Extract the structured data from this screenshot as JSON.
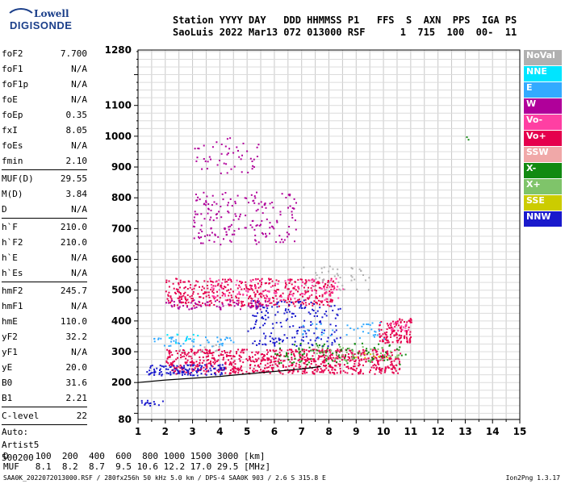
{
  "logo": {
    "brand": "Lowell",
    "product": "DIGISONDE"
  },
  "header": {
    "line1": "Station YYYY DAY   DDD HHMMSS P1   FFS  S  AXN  PPS  IGA PS",
    "line2": "SaoLuis 2022 Mar13 072 013000 RSF      1  715  100  00-  11"
  },
  "params": [
    {
      "label": "foF2",
      "value": "7.700"
    },
    {
      "label": "foF1",
      "value": "N/A"
    },
    {
      "label": "foF1p",
      "value": "N/A"
    },
    {
      "label": "foE",
      "value": "N/A"
    },
    {
      "label": "foEp",
      "value": "0.35"
    },
    {
      "label": "fxI",
      "value": "8.05"
    },
    {
      "label": "foEs",
      "value": "N/A"
    },
    {
      "label": "fmin",
      "value": "2.10"
    },
    {
      "sep": true
    },
    {
      "label": "MUF(D)",
      "value": "29.55"
    },
    {
      "label": "M(D)",
      "value": "3.84"
    },
    {
      "label": "D",
      "value": "N/A"
    },
    {
      "sep": true
    },
    {
      "label": "h`F",
      "value": "210.0"
    },
    {
      "label": "h`F2",
      "value": "210.0"
    },
    {
      "label": "h`E",
      "value": "N/A"
    },
    {
      "label": "h`Es",
      "value": "N/A"
    },
    {
      "sep": true
    },
    {
      "label": "hmF2",
      "value": "245.7"
    },
    {
      "label": "hmF1",
      "value": "N/A"
    },
    {
      "label": "hmE",
      "value": "110.0"
    },
    {
      "label": "yF2",
      "value": "32.2"
    },
    {
      "label": "yF1",
      "value": "N/A"
    },
    {
      "label": "yE",
      "value": "20.0"
    },
    {
      "label": "B0",
      "value": "31.6"
    },
    {
      "label": "B1",
      "value": "2.21"
    },
    {
      "sep": true
    },
    {
      "label": "C-level",
      "value": "22"
    },
    {
      "sep": true
    }
  ],
  "autoscale": {
    "line1": "Auto:",
    "line2": "Artist5",
    "line3": "500200"
  },
  "legend": [
    {
      "label": "NoVal",
      "color": "#b0b0b0"
    },
    {
      "label": "NNE",
      "color": "#00e5ff"
    },
    {
      "label": "E",
      "color": "#33aaff"
    },
    {
      "label": "W",
      "color": "#b0009a"
    },
    {
      "label": "Vo-",
      "color": "#ff3fa3"
    },
    {
      "label": "Vo+",
      "color": "#e5004d"
    },
    {
      "label": "SSW",
      "color": "#f0a8a8"
    },
    {
      "label": "X-",
      "color": "#118a11"
    },
    {
      "label": "X+",
      "color": "#7fc46a"
    },
    {
      "label": "SSE",
      "color": "#cccc00"
    },
    {
      "label": "NNW",
      "color": "#1a1acc"
    }
  ],
  "footer": {
    "line1": "D     100  200  400  600  800 1000 1500 3000 [km]",
    "line2": "MUF   8.1  8.2  8.7  9.5 10.6 12.2 17.0 29.5 [MHz]",
    "file": "SAA0K_2022072013000.RSF / 280fx256h 50 kHz 5.0 km / DPS-4 SAA0K 903 / 2.6 S 315.8 E",
    "version": "Ion2Png 1.3.17"
  },
  "chart_data": {
    "type": "scatter",
    "title": "",
    "xlabel": "",
    "ylabel": "",
    "xlim": [
      1,
      15
    ],
    "ylim": [
      80,
      1280
    ],
    "x_ticks": [
      1,
      2,
      3,
      4,
      5,
      6,
      7,
      8,
      9,
      10,
      11,
      12,
      13,
      14,
      15
    ],
    "y_ticks": [
      80,
      200,
      300,
      400,
      500,
      600,
      700,
      800,
      900,
      1000,
      1100,
      1280
    ],
    "grid": true,
    "trace_line": {
      "x": [
        1.0,
        2.0,
        3.0,
        4.0,
        5.0,
        6.0,
        7.0,
        7.7
      ],
      "y": [
        200,
        208,
        214,
        220,
        228,
        236,
        244,
        252
      ]
    },
    "series": [
      {
        "name": "Vo+",
        "color": "#e5004d",
        "bands": [
          {
            "x": [
              2.0,
              10.6
            ],
            "y": [
              230,
              310
            ],
            "density": 0.85
          },
          {
            "x": [
              2.0,
              8.2
            ],
            "y": [
              450,
              540
            ],
            "density": 0.55
          },
          {
            "x": [
              9.8,
              11.0
            ],
            "y": [
              330,
              410
            ],
            "density": 0.9
          }
        ]
      },
      {
        "name": "NNW",
        "color": "#1a1acc",
        "bands": [
          {
            "x": [
              1.1,
              1.9
            ],
            "y": [
              125,
              145
            ],
            "density": 0.7
          },
          {
            "x": [
              1.3,
              4.2
            ],
            "y": [
              225,
              260
            ],
            "density": 0.8
          },
          {
            "x": [
              5.0,
              8.4
            ],
            "y": [
              320,
              470
            ],
            "density": 0.25
          }
        ]
      },
      {
        "name": "W",
        "color": "#b0009a",
        "bands": [
          {
            "x": [
              2.0,
              5.8
            ],
            "y": [
              440,
              470
            ],
            "density": 0.45
          },
          {
            "x": [
              3.0,
              5.4
            ],
            "y": [
              880,
              1000
            ],
            "density": 0.12
          },
          {
            "x": [
              3.0,
              6.8
            ],
            "y": [
              650,
              820
            ],
            "density": 0.2
          }
        ]
      },
      {
        "name": "E",
        "color": "#33aaff",
        "bands": [
          {
            "x": [
              1.5,
              4.5
            ],
            "y": [
              320,
              350
            ],
            "density": 0.35
          },
          {
            "x": [
              7.0,
              10.0
            ],
            "y": [
              340,
              400
            ],
            "density": 0.15
          }
        ]
      },
      {
        "name": "NNE",
        "color": "#00e5ff",
        "bands": [
          {
            "x": [
              1.8,
              3.2
            ],
            "y": [
              330,
              360
            ],
            "density": 0.2
          }
        ]
      },
      {
        "name": "X-",
        "color": "#118a11",
        "bands": [
          {
            "x": [
              6.0,
              10.8
            ],
            "y": [
              260,
              330
            ],
            "density": 0.2
          },
          {
            "x": [
              13.0,
              13.1
            ],
            "y": [
              990,
              1010
            ],
            "density": 0.8
          }
        ]
      },
      {
        "name": "X+",
        "color": "#7fc46a",
        "bands": [
          {
            "x": [
              7.5,
              10.6
            ],
            "y": [
              270,
              320
            ],
            "density": 0.2
          }
        ]
      },
      {
        "name": "SSE",
        "color": "#cccc00",
        "bands": [
          {
            "x": [
              8.5,
              10.4
            ],
            "y": [
              280,
              300
            ],
            "density": 0.12
          }
        ]
      },
      {
        "name": "Vo-",
        "color": "#ff3fa3",
        "bands": [
          {
            "x": [
              3.5,
              8.5
            ],
            "y": [
              470,
              540
            ],
            "density": 0.2
          },
          {
            "x": [
              10.2,
              10.9
            ],
            "y": [
              370,
              400
            ],
            "density": 0.6
          }
        ]
      },
      {
        "name": "NoVal",
        "color": "#b0b0b0",
        "bands": [
          {
            "x": [
              7.0,
              9.5
            ],
            "y": [
              500,
              580
            ],
            "density": 0.15
          },
          {
            "x": [
              2.5,
              4.0
            ],
            "y": [
              300,
              330
            ],
            "density": 0.15
          }
        ]
      }
    ]
  }
}
